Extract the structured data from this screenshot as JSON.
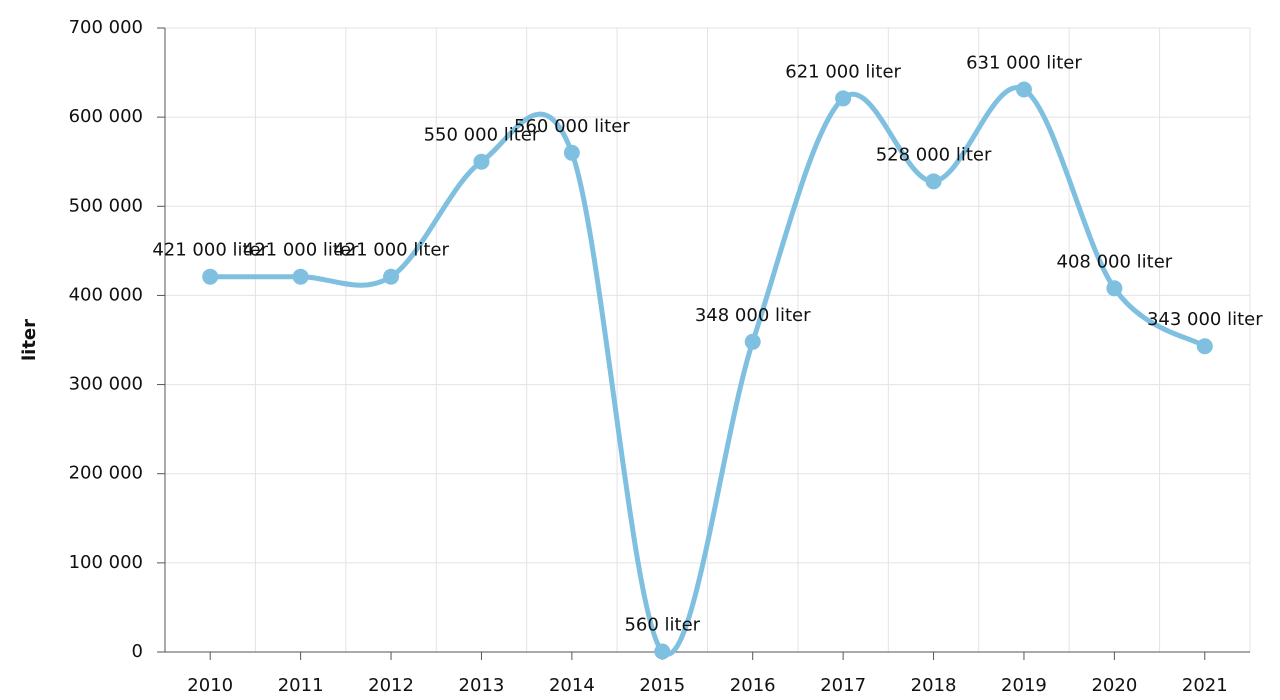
{
  "chart_data": {
    "type": "line",
    "y_label": "liter",
    "categories": [
      "2010",
      "2011",
      "2012",
      "2013",
      "2014",
      "2015",
      "2016",
      "2017",
      "2018",
      "2019",
      "2020",
      "2021"
    ],
    "series": [
      {
        "name": "liter",
        "color": "#7fc0e0",
        "values": [
          421000,
          421000,
          421000,
          550000,
          560000,
          560,
          348000,
          621000,
          528000,
          631000,
          408000,
          343000
        ],
        "value_labels": [
          "421 000 liter",
          "421 000 liter",
          "421 000 liter",
          "550 000 liter",
          "560 000 liter",
          "560 liter",
          "348 000 liter",
          "621 000 liter",
          "528 000 liter",
          "631 000 liter",
          "408 000 liter",
          "343 000 liter"
        ]
      }
    ],
    "ylim": [
      0,
      700000
    ],
    "yticks": [
      {
        "value": 0,
        "label": "0"
      },
      {
        "value": 100000,
        "label": "100 000"
      },
      {
        "value": 200000,
        "label": "200 000"
      },
      {
        "value": 300000,
        "label": "300 000"
      },
      {
        "value": 400000,
        "label": "400 000"
      },
      {
        "value": 500000,
        "label": "500 000"
      },
      {
        "value": 600000,
        "label": "600 000"
      },
      {
        "value": 700000,
        "label": "700 000"
      }
    ],
    "grid": true,
    "smooth": true
  }
}
